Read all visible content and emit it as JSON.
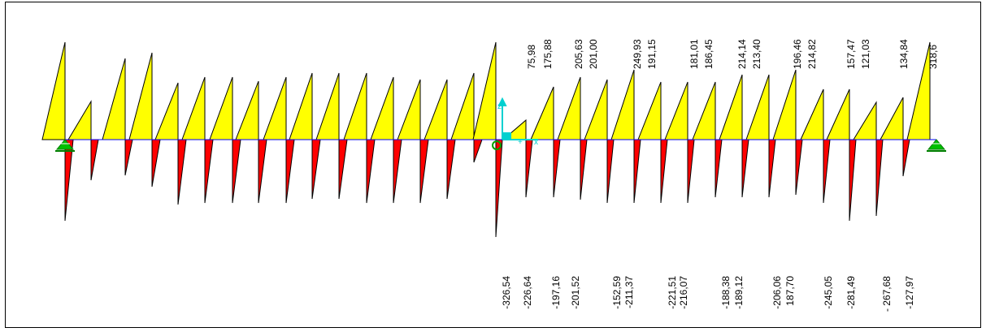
{
  "colors": {
    "positive": "#ffff00",
    "negative": "#ff0000",
    "outline": "#000000",
    "axis": "#0000ff",
    "support": "#00c000",
    "origin": "#00e0e0"
  },
  "icons": {
    "left_support": "pin-support-icon",
    "right_support": "pin-support-icon",
    "mid_support": "roller-support-icon",
    "origin": "coordinate-axes-icon"
  },
  "labels_top": [
    "75,98",
    "175,88",
    "205,63",
    "201,00",
    "249,93",
    "191,15",
    "181,01",
    "186,45",
    "214,14",
    "213,40",
    "196,46",
    "214,82",
    "157,47",
    "121,03",
    "134,84",
    "318,6"
  ],
  "labels_bottom": [
    "-326,54",
    "-226,64",
    "-197,16",
    "-201,52",
    "-152,59",
    "-211,37",
    "-221,51",
    "-216,07",
    "-188,38",
    "-189,12",
    "-206,06",
    "187,70",
    "-245,05",
    "-281,49",
    "- 267,68",
    "-127,97"
  ],
  "chart_data": {
    "type": "shear_force_diagram",
    "units_shown": false,
    "positive_values_labeled": [
      75.98,
      175.88,
      205.63,
      201.0,
      249.93,
      191.15,
      181.01,
      186.45,
      214.14,
      213.4,
      196.46,
      214.82,
      157.47,
      121.03,
      134.84,
      318.6
    ],
    "negative_values_labeled": [
      -326.54,
      -226.64,
      -197.16,
      -201.52,
      -152.59,
      -211.37,
      -221.51,
      -216.07,
      -188.38,
      -189.12,
      -206.06,
      187.7,
      -245.05,
      -281.49,
      -267.68,
      -127.97
    ]
  }
}
